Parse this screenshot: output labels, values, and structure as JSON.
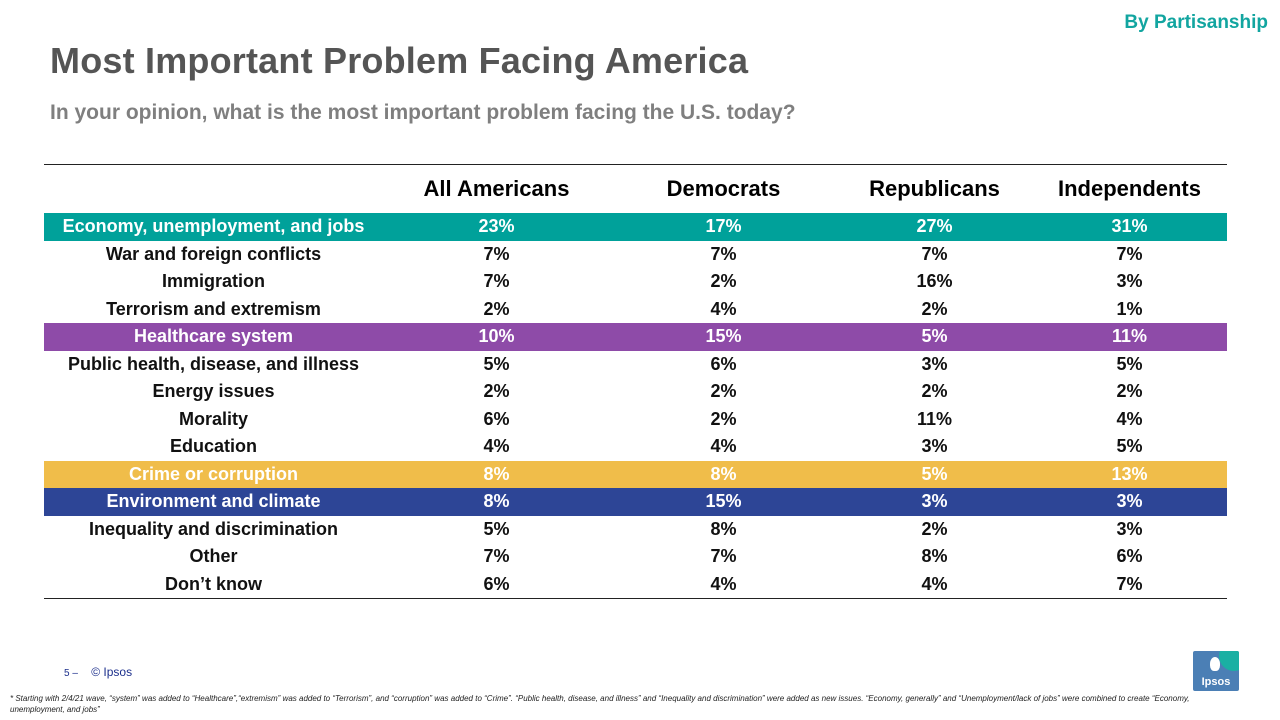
{
  "header": {
    "corner_label": "By Partisanship",
    "title": "Most Important Problem Facing America",
    "subtitle": "In your opinion, what is the most important problem facing the U.S. today?"
  },
  "table": {
    "columns": [
      "",
      "All Americans",
      "Democrats",
      "Republicans",
      "Independents"
    ],
    "rows": [
      {
        "label": "Economy, unemployment, and jobs",
        "values": [
          "23%",
          "17%",
          "27%",
          "31%"
        ],
        "highlight": "#00a19a"
      },
      {
        "label": "War and foreign conflicts",
        "values": [
          "7%",
          "7%",
          "7%",
          "7%"
        ]
      },
      {
        "label": "Immigration",
        "values": [
          "7%",
          "2%",
          "16%",
          "3%"
        ]
      },
      {
        "label": "Terrorism and extremism",
        "values": [
          "2%",
          "4%",
          "2%",
          "1%"
        ]
      },
      {
        "label": "Healthcare system",
        "values": [
          "10%",
          "15%",
          "5%",
          "11%"
        ],
        "highlight": "#8e4ba8"
      },
      {
        "label": "Public health, disease, and illness",
        "values": [
          "5%",
          "6%",
          "3%",
          "5%"
        ]
      },
      {
        "label": "Energy issues",
        "values": [
          "2%",
          "2%",
          "2%",
          "2%"
        ]
      },
      {
        "label": "Morality",
        "values": [
          "6%",
          "2%",
          "11%",
          "4%"
        ]
      },
      {
        "label": "Education",
        "values": [
          "4%",
          "4%",
          "3%",
          "5%"
        ]
      },
      {
        "label": "Crime or corruption",
        "values": [
          "8%",
          "8%",
          "5%",
          "13%"
        ],
        "highlight": "#f0bd4a"
      },
      {
        "label": "Environment and climate",
        "values": [
          "8%",
          "15%",
          "3%",
          "3%"
        ],
        "highlight": "#2d4596"
      },
      {
        "label": "Inequality and discrimination",
        "values": [
          "5%",
          "8%",
          "2%",
          "3%"
        ]
      },
      {
        "label": "Other",
        "values": [
          "7%",
          "7%",
          "8%",
          "6%"
        ]
      },
      {
        "label": "Don’t know",
        "values": [
          "6%",
          "4%",
          "4%",
          "7%"
        ]
      }
    ]
  },
  "footer": {
    "page_number": "5 ‒",
    "copyright": "© Ipsos",
    "footnote": "* Starting with 2/4/21 wave, “system” was added to “Healthcare”,“extremism” was added to “Terrorism”, and “corruption” was added to “Crime”. “Public health, disease, and illness” and “Inequality and discrimination” were added as new issues. “Economy, generally” and “Unemployment/lack of jobs” were combined to create “Economy, unemployment, and jobs”",
    "logo_text": "Ipsos"
  },
  "colors": {
    "accent_teal": "#12a5a0",
    "title_gray": "#555555",
    "subtitle_gray": "#7f7f7f"
  }
}
